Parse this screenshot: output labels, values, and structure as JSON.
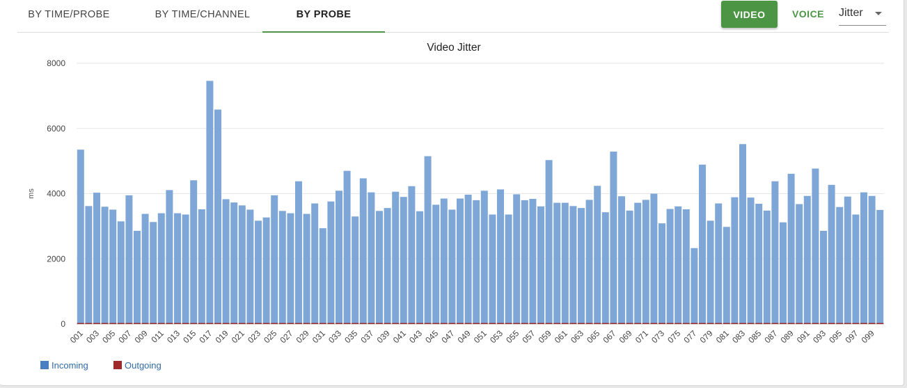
{
  "tabs": [
    "BY TIME/PROBE",
    "BY TIME/CHANNEL",
    "BY PROBE"
  ],
  "active_tab": "BY PROBE",
  "toolbar": {
    "video_label": "VIDEO",
    "voice_label": "VOICE",
    "metric_value": "Jitter"
  },
  "colors": {
    "incoming": "#7ea7d8",
    "outgoing": "#a02a2a",
    "accent": "#4b9544"
  },
  "legend": [
    {
      "label": "Incoming",
      "color": "#4a7fc0"
    },
    {
      "label": "Outgoing",
      "color": "#a02a2a"
    }
  ],
  "chart_data": {
    "type": "bar",
    "title": "Video Jitter",
    "xlabel": "",
    "ylabel": "ms",
    "ylim": [
      0,
      8000
    ],
    "yticks": [
      0,
      2000,
      4000,
      6000,
      8000
    ],
    "grid": true,
    "legend_position": "bottom-left",
    "categories": [
      "001",
      "002",
      "003",
      "004",
      "005",
      "006",
      "007",
      "008",
      "009",
      "010",
      "011",
      "012",
      "013",
      "014",
      "015",
      "016",
      "017",
      "018",
      "019",
      "020",
      "021",
      "022",
      "023",
      "024",
      "025",
      "026",
      "027",
      "028",
      "029",
      "030",
      "031",
      "032",
      "033",
      "034",
      "035",
      "036",
      "037",
      "038",
      "039",
      "040",
      "041",
      "042",
      "043",
      "044",
      "045",
      "046",
      "047",
      "048",
      "049",
      "050",
      "051",
      "052",
      "053",
      "054",
      "055",
      "056",
      "057",
      "058",
      "059",
      "060",
      "061",
      "062",
      "063",
      "064",
      "065",
      "066",
      "067",
      "068",
      "069",
      "070",
      "071",
      "072",
      "073",
      "074",
      "075",
      "076",
      "077",
      "078",
      "079",
      "080",
      "081",
      "082",
      "083",
      "084",
      "085",
      "086",
      "087",
      "088",
      "089",
      "090",
      "091",
      "092",
      "093",
      "094",
      "095",
      "096",
      "097",
      "098",
      "099",
      "100"
    ],
    "xtick_labels": [
      "001",
      "003",
      "005",
      "007",
      "009",
      "011",
      "013",
      "015",
      "017",
      "019",
      "021",
      "023",
      "025",
      "027",
      "029",
      "031",
      "033",
      "035",
      "037",
      "039",
      "041",
      "043",
      "045",
      "047",
      "049",
      "051",
      "053",
      "055",
      "057",
      "059",
      "061",
      "063",
      "065",
      "067",
      "069",
      "071",
      "073",
      "075",
      "077",
      "079",
      "081",
      "083",
      "085",
      "087",
      "089",
      "091",
      "093",
      "095",
      "097",
      "099"
    ],
    "series": [
      {
        "name": "Incoming",
        "values": [
          5350,
          3620,
          4030,
          3600,
          3510,
          3150,
          3950,
          2860,
          3380,
          3130,
          3400,
          4110,
          3400,
          3360,
          4410,
          3520,
          7460,
          6580,
          3830,
          3730,
          3640,
          3510,
          3170,
          3270,
          3950,
          3470,
          3400,
          4380,
          3380,
          3700,
          2940,
          3760,
          4090,
          4700,
          3300,
          4470,
          4040,
          3470,
          3560,
          4060,
          3900,
          4230,
          3460,
          5150,
          3660,
          3850,
          3510,
          3850,
          3970,
          3800,
          4090,
          3360,
          4130,
          3360,
          3980,
          3800,
          3840,
          3610,
          5030,
          3720,
          3720,
          3620,
          3560,
          3810,
          4240,
          3430,
          5290,
          3920,
          3480,
          3720,
          3810,
          4000,
          3090,
          3530,
          3610,
          3520,
          2330,
          4890,
          3170,
          3700,
          2980,
          3890,
          5520,
          3880,
          3690,
          3480,
          4380,
          3120,
          4610,
          3680,
          3930,
          4770,
          2860,
          4270,
          3590,
          3910,
          3360,
          4040,
          3930,
          3500
        ]
      },
      {
        "name": "Outgoing",
        "values": [
          25,
          30,
          20,
          30,
          25,
          20,
          30,
          15,
          20,
          25,
          20,
          30,
          20,
          25,
          30,
          20,
          30,
          30,
          20,
          30,
          25,
          25,
          30,
          20,
          25,
          20,
          30,
          20,
          25,
          20,
          30,
          20,
          30,
          20,
          30,
          25,
          20,
          30,
          25,
          30,
          25,
          30,
          20,
          25,
          30,
          25,
          30,
          20,
          25,
          30,
          20,
          25,
          30,
          20,
          30,
          25,
          30,
          20,
          30,
          25,
          20,
          30,
          25,
          20,
          30,
          25,
          30,
          30,
          20,
          25,
          20,
          30,
          25,
          20,
          30,
          25,
          20,
          30,
          25,
          20,
          30,
          30,
          20,
          25,
          30,
          25,
          30,
          20,
          25,
          30,
          20,
          25,
          30,
          20,
          30,
          25,
          30,
          30,
          20,
          25
        ]
      }
    ]
  }
}
